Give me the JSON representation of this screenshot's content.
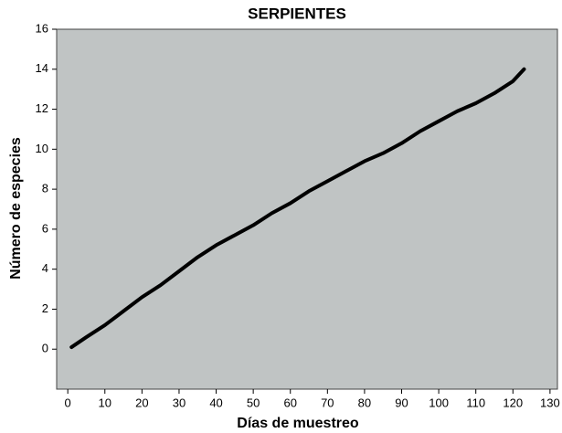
{
  "chart_data": {
    "type": "line",
    "title": "SERPIENTES",
    "x_label": "Días de muestreo",
    "y_label": "Número de especies",
    "x": [
      1,
      5,
      10,
      15,
      20,
      25,
      30,
      35,
      40,
      45,
      50,
      55,
      60,
      65,
      70,
      75,
      80,
      85,
      90,
      95,
      100,
      105,
      110,
      115,
      120,
      123
    ],
    "values": [
      0.1,
      0.6,
      1.2,
      1.9,
      2.6,
      3.2,
      3.9,
      4.6,
      5.2,
      5.7,
      6.2,
      6.8,
      7.3,
      7.9,
      8.4,
      8.9,
      9.4,
      9.8,
      10.3,
      10.9,
      11.4,
      11.9,
      12.3,
      12.8,
      13.4,
      14.0
    ],
    "color": "#000000",
    "xlim": [
      -3,
      132
    ],
    "xticks": [
      0,
      10,
      20,
      30,
      40,
      50,
      60,
      70,
      80,
      90,
      100,
      110,
      120,
      130
    ],
    "ylim": [
      -2,
      16
    ],
    "yticks": [
      0,
      2,
      4,
      6,
      8,
      10,
      12,
      14,
      16
    ],
    "background": "#c0c4c4"
  }
}
